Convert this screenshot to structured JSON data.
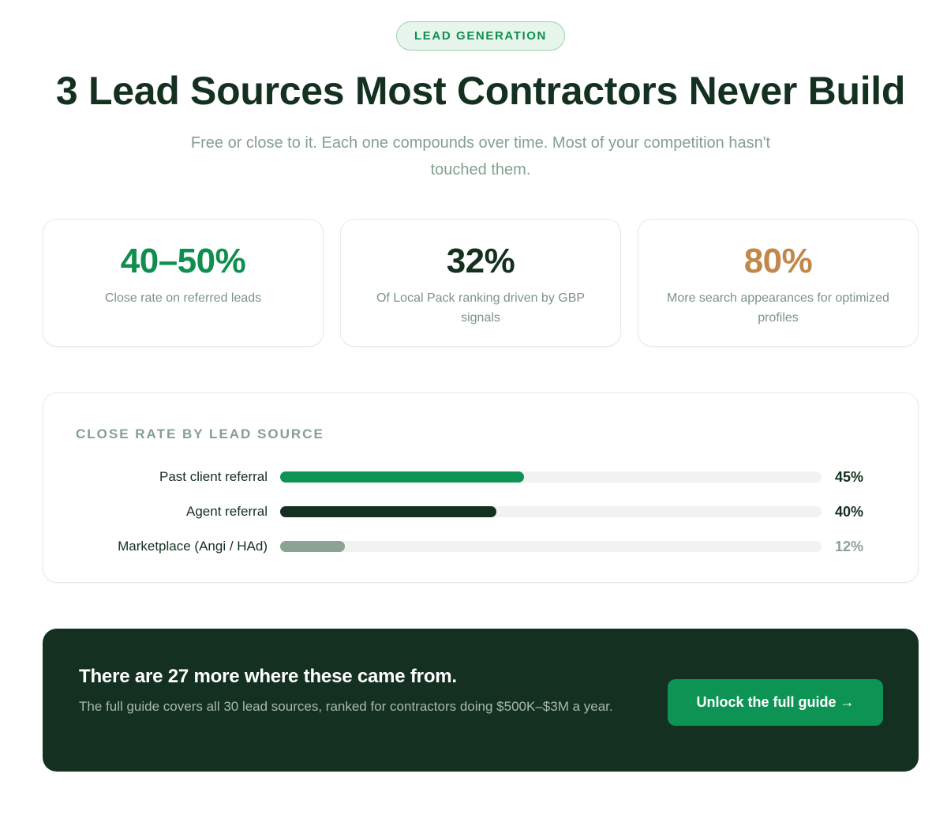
{
  "badge": "LEAD GENERATION",
  "title": "3 Lead Sources Most Contractors Never Build",
  "subtitle": "Free or close to it. Each one compounds over time. Most of your competition hasn't touched them.",
  "stats": [
    {
      "value": "40–50%",
      "label": "Close rate on referred leads",
      "color": "#0f8f4f"
    },
    {
      "value": "32%",
      "label": "Of Local Pack ranking driven by GBP signals",
      "color": "#14301f"
    },
    {
      "value": "80%",
      "label": "More search appearances for optimized profiles",
      "color": "#c2874a"
    }
  ],
  "chart_data": {
    "type": "bar",
    "orientation": "horizontal",
    "title": "CLOSE RATE BY LEAD SOURCE",
    "xlabel": "",
    "ylabel": "",
    "xlim": [
      0,
      100
    ],
    "unit": "%",
    "categories": [
      "Past client referral",
      "Agent referral",
      "Marketplace (Angi / HAd)"
    ],
    "values": [
      45,
      40,
      12
    ],
    "value_labels": [
      "45%",
      "40%",
      "12%"
    ],
    "colors": [
      "#0d9455",
      "#143021",
      "#8aa393"
    ],
    "value_label_colors": [
      "#14301f",
      "#14301f",
      "#8aa393"
    ]
  },
  "cta": {
    "heading": "There are 27 more where these came from.",
    "text": "The full guide covers all 30 lead sources, ranked for contractors doing $500K–$3M a year.",
    "button_label": "Unlock the full guide →"
  }
}
